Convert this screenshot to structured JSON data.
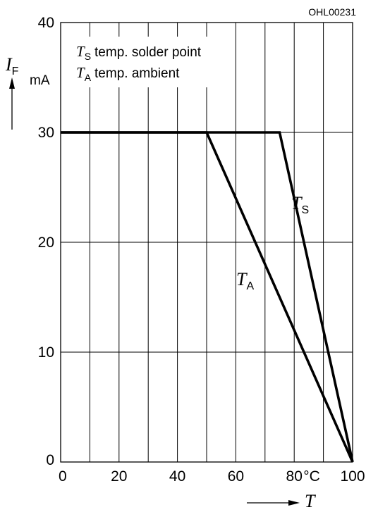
{
  "chart_data": {
    "type": "line",
    "figure_code": "OHL00231",
    "ylabel": {
      "symbol": "I",
      "subscript": "F",
      "unit": "mA"
    },
    "xlabel": {
      "symbol": "T",
      "unit": "°C"
    },
    "xlim": [
      0,
      100
    ],
    "ylim": [
      0,
      40
    ],
    "x_ticks": [
      0,
      20,
      40,
      60,
      80,
      100
    ],
    "y_ticks": [
      0,
      10,
      20,
      30,
      40
    ],
    "x_grid": [
      0,
      10,
      20,
      30,
      40,
      50,
      60,
      70,
      80,
      90,
      100
    ],
    "y_grid": [
      0,
      10,
      20,
      30,
      40
    ],
    "grid": true,
    "legend": [
      {
        "symbol": "T",
        "subscript": "S",
        "text": "temp. solder point"
      },
      {
        "symbol": "T",
        "subscript": "A",
        "text": "temp. ambient"
      }
    ],
    "series": [
      {
        "label_symbol": "T",
        "label_subscript": "S",
        "x": [
          0,
          75,
          100
        ],
        "y": [
          30,
          30,
          0
        ]
      },
      {
        "label_symbol": "T",
        "label_subscript": "A",
        "x": [
          0,
          50,
          100
        ],
        "y": [
          30,
          30,
          0
        ]
      }
    ]
  }
}
